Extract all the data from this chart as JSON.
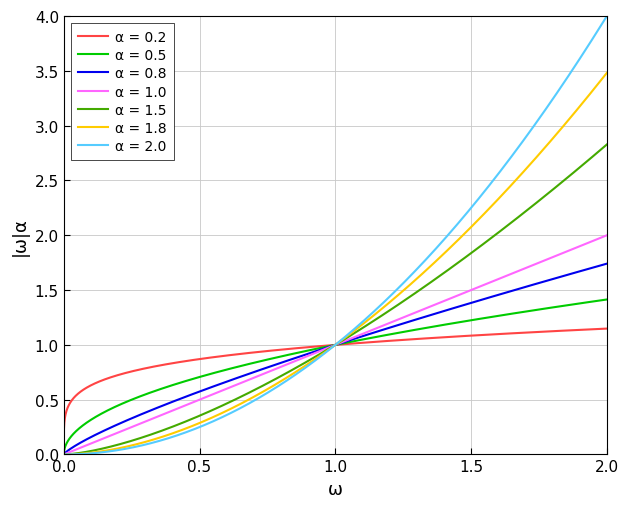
{
  "alphas": [
    0.2,
    0.5,
    0.8,
    1.0,
    1.5,
    1.8,
    2.0
  ],
  "colors": [
    "#ff4444",
    "#00cc00",
    "#0000ee",
    "#ff66ff",
    "#44aa00",
    "#ffcc00",
    "#55ccff"
  ],
  "legend_labels": [
    "a = 0.2",
    "a = 0.5",
    "a = 0.8",
    "a = 1.0",
    "a = 1.5",
    "a = 1.8",
    "a = 2.0"
  ],
  "xlim": [
    0,
    2
  ],
  "ylim": [
    0,
    4
  ],
  "xticks": [
    0,
    0.5,
    1,
    1.5,
    2
  ],
  "yticks": [
    0,
    0.5,
    1,
    1.5,
    2,
    2.5,
    3,
    3.5,
    4
  ],
  "linewidth": 1.5,
  "figsize": [
    6.3,
    5.1
  ],
  "dpi": 100
}
